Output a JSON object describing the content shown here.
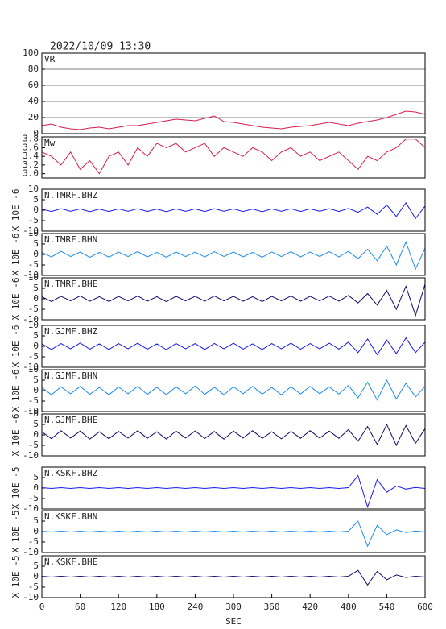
{
  "chart_data": [
    {
      "type": "line",
      "title": "2022/10/09 13:30",
      "label": "VR",
      "grid": true,
      "x": [
        0,
        15,
        30,
        45,
        60,
        75,
        90,
        105,
        120,
        135,
        150,
        165,
        180,
        195,
        210,
        225,
        240,
        255,
        270,
        285,
        300,
        315,
        330,
        345,
        360,
        375,
        390,
        405,
        420,
        435,
        450,
        465,
        480,
        495,
        510,
        525,
        540,
        555,
        570,
        585,
        600
      ],
      "series": [
        {
          "color": "#d81e4a",
          "values": [
            10,
            12,
            8,
            6,
            5,
            7,
            8,
            6,
            8,
            10,
            10,
            12,
            14,
            16,
            18,
            17,
            16,
            19,
            22,
            15,
            14,
            12,
            10,
            8,
            7,
            6,
            8,
            9,
            10,
            12,
            14,
            12,
            10,
            13,
            15,
            17,
            20,
            24,
            28,
            27,
            24
          ]
        }
      ],
      "xlim": [
        0,
        600
      ],
      "ylim": [
        0,
        100
      ],
      "yticks": [
        0,
        20,
        40,
        60,
        80,
        100
      ]
    },
    {
      "type": "line",
      "label": "Mw",
      "x": [
        0,
        15,
        30,
        45,
        60,
        75,
        90,
        105,
        120,
        135,
        150,
        165,
        180,
        195,
        210,
        225,
        240,
        255,
        270,
        285,
        300,
        315,
        330,
        345,
        360,
        375,
        390,
        405,
        420,
        435,
        450,
        465,
        480,
        495,
        510,
        525,
        540,
        555,
        570,
        585,
        600
      ],
      "series": [
        {
          "color": "#d81e4a",
          "values": [
            3.5,
            3.4,
            3.2,
            3.5,
            3.1,
            3.3,
            3.0,
            3.4,
            3.5,
            3.2,
            3.6,
            3.4,
            3.7,
            3.6,
            3.7,
            3.5,
            3.6,
            3.7,
            3.4,
            3.6,
            3.5,
            3.4,
            3.6,
            3.5,
            3.3,
            3.5,
            3.6,
            3.4,
            3.5,
            3.3,
            3.4,
            3.5,
            3.3,
            3.1,
            3.4,
            3.3,
            3.5,
            3.6,
            3.8,
            3.8,
            3.6
          ]
        }
      ],
      "xlim": [
        0,
        600
      ],
      "ylim": [
        2.9,
        3.85
      ],
      "yticks": [
        {
          "value": 3,
          "label": "3.0"
        },
        3.2,
        3.4,
        3.6,
        3.8
      ]
    },
    {
      "type": "line",
      "label": "N.TMRF.BHZ",
      "ylabel": "X 10E -6",
      "x": [
        0,
        15,
        30,
        45,
        60,
        75,
        90,
        105,
        120,
        135,
        150,
        165,
        180,
        195,
        210,
        225,
        240,
        255,
        270,
        285,
        300,
        315,
        330,
        345,
        360,
        375,
        390,
        405,
        420,
        435,
        450,
        465,
        480,
        495,
        510,
        525,
        540,
        555,
        570,
        585,
        600
      ],
      "series": [
        {
          "color": "#1a1aee",
          "values": [
            0.5,
            -0.6,
            0.7,
            -0.5,
            0.6,
            -0.7,
            0.5,
            -0.6,
            0.6,
            -0.5,
            0.7,
            -0.6,
            0.5,
            -0.7,
            0.6,
            -0.5,
            0.6,
            -0.6,
            0.7,
            -0.5,
            0.6,
            -0.6,
            0.5,
            -0.7,
            0.6,
            -0.5,
            0.7,
            -0.6,
            0.6,
            -0.5,
            0.7,
            -0.6,
            0.8,
            -1,
            1.5,
            -2,
            2.5,
            -3,
            3.5,
            -4,
            2
          ]
        }
      ],
      "xlim": [
        0,
        600
      ],
      "ylim": [
        -10,
        10
      ],
      "yticks": [
        -10,
        -5,
        0,
        5,
        10
      ]
    },
    {
      "type": "line",
      "label": "N.TMRF.BHN",
      "ylabel": "X 10E -6",
      "x": [
        0,
        15,
        30,
        45,
        60,
        75,
        90,
        105,
        120,
        135,
        150,
        165,
        180,
        195,
        210,
        225,
        240,
        255,
        270,
        285,
        300,
        315,
        330,
        345,
        360,
        375,
        390,
        405,
        420,
        435,
        450,
        465,
        480,
        495,
        510,
        525,
        540,
        555,
        570,
        585,
        600
      ],
      "series": [
        {
          "color": "#1e8cf0",
          "values": [
            1,
            -1.2,
            1.5,
            -1,
            1.2,
            -1.4,
            1,
            -1.3,
            1.2,
            -1,
            1.4,
            -1.2,
            1,
            -1.3,
            1.2,
            -1,
            1.1,
            -1.2,
            1.3,
            -1,
            1.2,
            -1.1,
            1,
            -1.3,
            1.2,
            -1,
            1.3,
            -1.2,
            1.1,
            -1,
            1.3,
            -1.2,
            1.5,
            -2,
            2.5,
            -3,
            4,
            -5,
            6,
            -7,
            3
          ]
        }
      ],
      "xlim": [
        0,
        600
      ],
      "ylim": [
        -10,
        10
      ],
      "yticks": [
        -10,
        -5,
        0,
        5,
        10
      ]
    },
    {
      "type": "line",
      "label": "N.TMRF.BHE",
      "ylabel": "X 10E -6",
      "x": [
        0,
        15,
        30,
        45,
        60,
        75,
        90,
        105,
        120,
        135,
        150,
        165,
        180,
        195,
        210,
        225,
        240,
        255,
        270,
        285,
        300,
        315,
        330,
        345,
        360,
        375,
        390,
        405,
        420,
        435,
        450,
        465,
        480,
        495,
        510,
        525,
        540,
        555,
        570,
        585,
        600
      ],
      "series": [
        {
          "color": "#0c0c6e",
          "values": [
            1,
            -1.3,
            1.2,
            -1,
            1.4,
            -1.2,
            1,
            -1.3,
            1.1,
            -1,
            1.3,
            -1.2,
            1,
            -1.4,
            1.2,
            -1,
            1.2,
            -1.1,
            1.3,
            -1,
            1.2,
            -1.2,
            1,
            -1.3,
            1.1,
            -1,
            1.3,
            -1.2,
            1.2,
            -1,
            1.3,
            -1.1,
            1.6,
            -2,
            2.5,
            -3,
            4,
            -5,
            6,
            -8,
            7
          ]
        }
      ],
      "xlim": [
        0,
        600
      ],
      "ylim": [
        -10,
        10
      ],
      "yticks": [
        -10,
        -5,
        0,
        5,
        10
      ]
    },
    {
      "type": "line",
      "label": "N.GJMF.BHZ",
      "ylabel": "X 10E -6",
      "x": [
        0,
        15,
        30,
        45,
        60,
        75,
        90,
        105,
        120,
        135,
        150,
        165,
        180,
        195,
        210,
        225,
        240,
        255,
        270,
        285,
        300,
        315,
        330,
        345,
        360,
        375,
        390,
        405,
        420,
        435,
        450,
        465,
        480,
        495,
        510,
        525,
        540,
        555,
        570,
        585,
        600
      ],
      "series": [
        {
          "color": "#1a1aee",
          "values": [
            1.2,
            -1.5,
            1.3,
            -1.2,
            1.6,
            -1.4,
            1.2,
            -1.5,
            1.3,
            -1.2,
            1.5,
            -1.4,
            1.2,
            -1.6,
            1.4,
            -1.2,
            1.3,
            -1.5,
            1.4,
            -1.2,
            1.5,
            -1.3,
            1.2,
            -1.5,
            1.3,
            -1.2,
            1.5,
            -1.4,
            1.3,
            -1.2,
            1.5,
            -1.3,
            2,
            -3,
            3.5,
            -4,
            3,
            -3.5,
            4,
            -3,
            2
          ]
        }
      ],
      "xlim": [
        0,
        600
      ],
      "ylim": [
        -10,
        10
      ],
      "yticks": [
        -10,
        -5,
        0,
        5,
        10
      ]
    },
    {
      "type": "line",
      "label": "N.GJMF.BHN",
      "ylabel": "X 10E -6",
      "x": [
        0,
        15,
        30,
        45,
        60,
        75,
        90,
        105,
        120,
        135,
        150,
        165,
        180,
        195,
        210,
        225,
        240,
        255,
        270,
        285,
        300,
        315,
        330,
        345,
        360,
        375,
        390,
        405,
        420,
        435,
        450,
        465,
        480,
        495,
        510,
        525,
        540,
        555,
        570,
        585,
        600
      ],
      "series": [
        {
          "color": "#1e8cf0",
          "values": [
            1.5,
            -2,
            1.8,
            -1.5,
            2,
            -1.8,
            1.5,
            -2,
            1.7,
            -1.5,
            2,
            -1.8,
            1.6,
            -2,
            1.8,
            -1.5,
            2.2,
            -1.8,
            1.6,
            -2,
            1.8,
            -1.5,
            2,
            -1.7,
            1.5,
            -2,
            1.8,
            -1.6,
            2,
            -1.5,
            1.8,
            -1.7,
            2.5,
            -3.5,
            4,
            -4.5,
            5,
            -4,
            3.5,
            -3,
            2
          ]
        }
      ],
      "xlim": [
        0,
        600
      ],
      "ylim": [
        -10,
        10
      ],
      "yticks": [
        -10,
        -5,
        0,
        5,
        10
      ]
    },
    {
      "type": "line",
      "label": "N.GJMF.BHE",
      "ylabel": "X 10E -6",
      "x": [
        0,
        15,
        30,
        45,
        60,
        75,
        90,
        105,
        120,
        135,
        150,
        165,
        180,
        195,
        210,
        225,
        240,
        255,
        270,
        285,
        300,
        315,
        330,
        345,
        360,
        375,
        390,
        405,
        420,
        435,
        450,
        465,
        480,
        495,
        510,
        525,
        540,
        555,
        570,
        585,
        600
      ],
      "series": [
        {
          "color": "#0c0c6e",
          "values": [
            1.5,
            -1.8,
            2,
            -1.5,
            1.8,
            -2,
            1.5,
            -1.8,
            1.7,
            -1.5,
            2,
            -1.6,
            1.5,
            -2,
            1.8,
            -1.5,
            1.9,
            -1.7,
            1.6,
            -2,
            1.8,
            -1.5,
            2,
            -1.6,
            1.5,
            -1.9,
            1.7,
            -1.6,
            2,
            -1.5,
            1.8,
            -1.6,
            2.5,
            -3,
            4,
            -4.5,
            5,
            -5,
            4.5,
            -4,
            3
          ]
        }
      ],
      "xlim": [
        0,
        600
      ],
      "ylim": [
        -10,
        10
      ],
      "yticks": [
        -10,
        -5,
        0,
        5,
        10
      ]
    },
    {
      "type": "line",
      "label": "N.KSKF.BHZ",
      "ylabel": "X 10E -5",
      "x": [
        0,
        15,
        30,
        45,
        60,
        75,
        90,
        105,
        120,
        135,
        150,
        165,
        180,
        195,
        210,
        225,
        240,
        255,
        270,
        285,
        300,
        315,
        330,
        345,
        360,
        375,
        390,
        405,
        420,
        435,
        450,
        465,
        480,
        495,
        510,
        525,
        540,
        555,
        570,
        585,
        600
      ],
      "series": [
        {
          "color": "#1a1aee",
          "values": [
            0.2,
            -0.2,
            0.2,
            -0.2,
            0.2,
            -0.2,
            0.2,
            -0.2,
            0.2,
            -0.2,
            0.2,
            -0.2,
            0.2,
            -0.2,
            0.2,
            -0.2,
            0.2,
            -0.2,
            0.2,
            -0.2,
            0.2,
            -0.2,
            0.2,
            -0.2,
            0.2,
            -0.2,
            0.2,
            -0.2,
            0.2,
            -0.2,
            0.2,
            -0.2,
            0.2,
            6,
            -9,
            4,
            -2,
            1,
            -0.5,
            0.3,
            -0.2
          ]
        }
      ],
      "xlim": [
        0,
        600
      ],
      "ylim": [
        -10,
        10
      ],
      "yticks": [
        -10,
        -5,
        0,
        5
      ]
    },
    {
      "type": "line",
      "label": "N.KSKF.BHN",
      "ylabel": "X 10E -5",
      "x": [
        0,
        15,
        30,
        45,
        60,
        75,
        90,
        105,
        120,
        135,
        150,
        165,
        180,
        195,
        210,
        225,
        240,
        255,
        270,
        285,
        300,
        315,
        330,
        345,
        360,
        375,
        390,
        405,
        420,
        435,
        450,
        465,
        480,
        495,
        510,
        525,
        540,
        555,
        570,
        585,
        600
      ],
      "series": [
        {
          "color": "#1e8cf0",
          "values": [
            0.2,
            -0.2,
            0.2,
            -0.2,
            0.2,
            -0.2,
            0.2,
            -0.2,
            0.2,
            -0.2,
            0.2,
            -0.2,
            0.2,
            -0.2,
            0.2,
            -0.2,
            0.2,
            -0.2,
            0.2,
            -0.2,
            0.2,
            -0.2,
            0.2,
            -0.2,
            0.2,
            -0.2,
            0.2,
            -0.2,
            0.2,
            -0.2,
            0.2,
            -0.2,
            0.2,
            5,
            -7,
            3,
            -1.5,
            0.8,
            -0.5,
            0.3,
            -0.2
          ]
        }
      ],
      "xlim": [
        0,
        600
      ],
      "ylim": [
        -10,
        10
      ],
      "yticks": [
        -10,
        -5,
        0,
        5
      ]
    },
    {
      "type": "line",
      "label": "N.KSKF.BHE",
      "ylabel": "X 10E -5",
      "xlabel": "SEC",
      "x": [
        0,
        15,
        30,
        45,
        60,
        75,
        90,
        105,
        120,
        135,
        150,
        165,
        180,
        195,
        210,
        225,
        240,
        255,
        270,
        285,
        300,
        315,
        330,
        345,
        360,
        375,
        390,
        405,
        420,
        435,
        450,
        465,
        480,
        495,
        510,
        525,
        540,
        555,
        570,
        585,
        600
      ],
      "series": [
        {
          "color": "#0c0c6e",
          "values": [
            0.2,
            -0.2,
            0.2,
            -0.2,
            0.2,
            -0.2,
            0.2,
            -0.2,
            0.2,
            -0.2,
            0.2,
            -0.2,
            0.2,
            -0.2,
            0.2,
            -0.2,
            0.2,
            -0.2,
            0.2,
            -0.2,
            0.2,
            -0.2,
            0.2,
            -0.2,
            0.2,
            -0.2,
            0.2,
            -0.2,
            0.2,
            -0.2,
            0.2,
            -0.2,
            0.2,
            3,
            -4,
            2.5,
            -1.5,
            0.8,
            -0.4,
            0.2,
            -0.2
          ]
        }
      ],
      "xlim": [
        0,
        600
      ],
      "ylim": [
        -10,
        10
      ],
      "yticks": [
        -10,
        -5,
        0,
        5
      ],
      "xticks": [
        0,
        60,
        120,
        180,
        240,
        300,
        360,
        420,
        480,
        540,
        600
      ]
    }
  ]
}
